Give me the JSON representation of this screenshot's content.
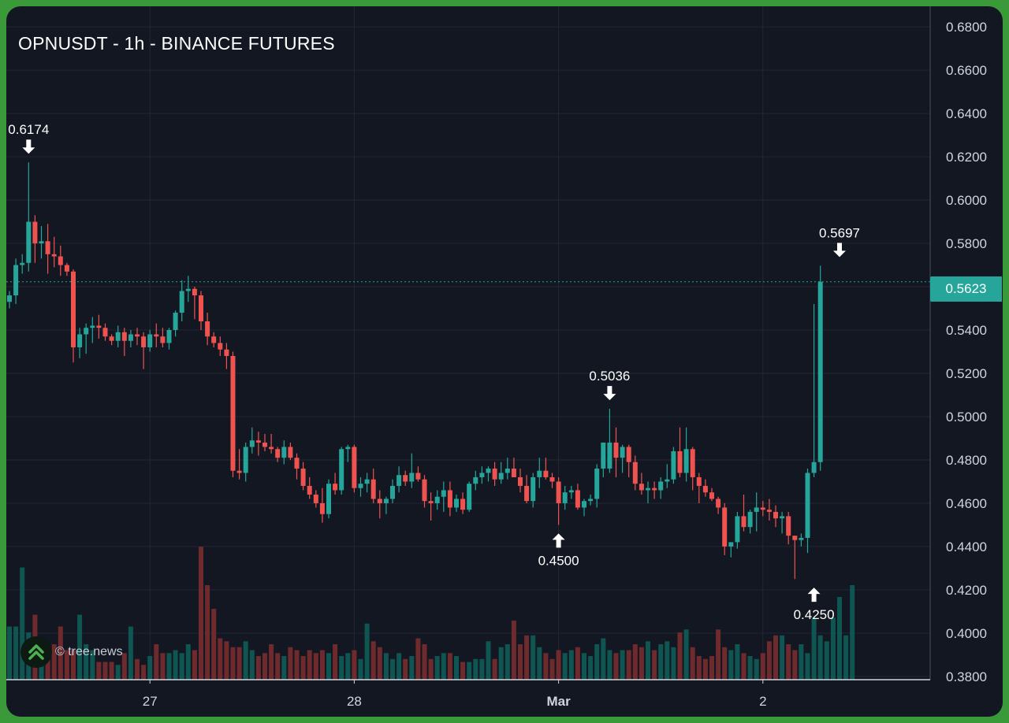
{
  "header": {
    "title": "OPNUSDT - 1h - BINANCE FUTURES"
  },
  "watermark": {
    "text": "© tree.news",
    "icon": "chevrons-up-icon"
  },
  "current_price": {
    "label": "0.5623",
    "value": 0.5623,
    "color": "#26a69a"
  },
  "colors": {
    "up": "#26a69a",
    "down": "#ef5350",
    "background": "#131722",
    "grid": "#232734"
  },
  "chart_data": {
    "type": "candlestick",
    "title": "OPNUSDT - 1h - BINANCE FUTURES",
    "y_axis": {
      "ticks": [
        "0.6800",
        "0.6600",
        "0.6400",
        "0.6200",
        "0.6000",
        "0.5800",
        "0.5600",
        "0.5400",
        "0.5200",
        "0.5000",
        "0.4800",
        "0.4600",
        "0.4400",
        "0.4200",
        "0.4000",
        "0.3800"
      ],
      "range": [
        0.3785,
        0.6895
      ],
      "position": "right"
    },
    "x_axis": {
      "ticks": [
        {
          "label": "27",
          "index": 22
        },
        {
          "label": "28",
          "index": 54
        },
        {
          "label": "Mar",
          "index": 86,
          "bold": true
        },
        {
          "label": "2",
          "index": 118
        }
      ]
    },
    "annotations": [
      {
        "label": "0.6174",
        "index": 3,
        "value": 0.6174,
        "side": "high"
      },
      {
        "label": "0.5036",
        "index": 94,
        "value": 0.5036,
        "side": "high"
      },
      {
        "label": "0.4500",
        "index": 86,
        "value": 0.45,
        "side": "low"
      },
      {
        "label": "0.5697",
        "index": 130,
        "value": 0.5697,
        "side": "high"
      },
      {
        "label": "0.4250",
        "index": 126,
        "value": 0.425,
        "side": "low"
      }
    ],
    "candles": [
      [
        0.553,
        0.558,
        0.55,
        0.556
      ],
      [
        0.556,
        0.573,
        0.552,
        0.57
      ],
      [
        0.57,
        0.575,
        0.566,
        0.571
      ],
      [
        0.571,
        0.6174,
        0.567,
        0.59
      ],
      [
        0.59,
        0.593,
        0.571,
        0.58
      ],
      [
        0.58,
        0.588,
        0.573,
        0.581
      ],
      [
        0.581,
        0.589,
        0.566,
        0.575
      ],
      [
        0.575,
        0.583,
        0.569,
        0.574
      ],
      [
        0.574,
        0.579,
        0.565,
        0.57
      ],
      [
        0.57,
        0.571,
        0.565,
        0.567
      ],
      [
        0.567,
        0.568,
        0.525,
        0.532
      ],
      [
        0.532,
        0.541,
        0.527,
        0.538
      ],
      [
        0.538,
        0.543,
        0.529,
        0.541
      ],
      [
        0.541,
        0.546,
        0.534,
        0.542
      ],
      [
        0.542,
        0.547,
        0.536,
        0.541
      ],
      [
        0.541,
        0.543,
        0.535,
        0.537
      ],
      [
        0.537,
        0.538,
        0.533,
        0.535
      ],
      [
        0.535,
        0.542,
        0.532,
        0.539
      ],
      [
        0.539,
        0.541,
        0.528,
        0.535
      ],
      [
        0.535,
        0.54,
        0.532,
        0.538
      ],
      [
        0.538,
        0.541,
        0.533,
        0.537
      ],
      [
        0.537,
        0.539,
        0.522,
        0.532
      ],
      [
        0.532,
        0.54,
        0.53,
        0.538
      ],
      [
        0.538,
        0.543,
        0.532,
        0.537
      ],
      [
        0.537,
        0.541,
        0.532,
        0.534
      ],
      [
        0.534,
        0.541,
        0.531,
        0.54
      ],
      [
        0.54,
        0.549,
        0.537,
        0.548
      ],
      [
        0.548,
        0.563,
        0.544,
        0.558
      ],
      [
        0.558,
        0.565,
        0.553,
        0.559
      ],
      [
        0.559,
        0.56,
        0.545,
        0.556
      ],
      [
        0.556,
        0.558,
        0.54,
        0.544
      ],
      [
        0.544,
        0.548,
        0.533,
        0.537
      ],
      [
        0.537,
        0.539,
        0.532,
        0.534
      ],
      [
        0.534,
        0.537,
        0.528,
        0.531
      ],
      [
        0.531,
        0.534,
        0.522,
        0.528
      ],
      [
        0.528,
        0.53,
        0.472,
        0.475
      ],
      [
        0.475,
        0.485,
        0.471,
        0.474
      ],
      [
        0.474,
        0.488,
        0.47,
        0.486
      ],
      [
        0.486,
        0.495,
        0.483,
        0.489
      ],
      [
        0.489,
        0.493,
        0.482,
        0.488
      ],
      [
        0.488,
        0.492,
        0.484,
        0.486
      ],
      [
        0.486,
        0.492,
        0.483,
        0.485
      ],
      [
        0.485,
        0.486,
        0.479,
        0.481
      ],
      [
        0.481,
        0.489,
        0.478,
        0.486
      ],
      [
        0.486,
        0.488,
        0.48,
        0.481
      ],
      [
        0.481,
        0.483,
        0.471,
        0.476
      ],
      [
        0.476,
        0.479,
        0.466,
        0.468
      ],
      [
        0.468,
        0.472,
        0.462,
        0.464
      ],
      [
        0.464,
        0.466,
        0.458,
        0.46
      ],
      [
        0.46,
        0.467,
        0.451,
        0.455
      ],
      [
        0.455,
        0.471,
        0.453,
        0.469
      ],
      [
        0.469,
        0.474,
        0.464,
        0.466
      ],
      [
        0.466,
        0.486,
        0.464,
        0.485
      ],
      [
        0.485,
        0.487,
        0.479,
        0.486
      ],
      [
        0.486,
        0.487,
        0.465,
        0.467
      ],
      [
        0.467,
        0.472,
        0.463,
        0.469
      ],
      [
        0.469,
        0.474,
        0.465,
        0.471
      ],
      [
        0.471,
        0.476,
        0.46,
        0.462
      ],
      [
        0.462,
        0.466,
        0.453,
        0.46
      ],
      [
        0.46,
        0.463,
        0.455,
        0.462
      ],
      [
        0.462,
        0.471,
        0.46,
        0.468
      ],
      [
        0.468,
        0.477,
        0.465,
        0.473
      ],
      [
        0.473,
        0.475,
        0.468,
        0.47
      ],
      [
        0.47,
        0.483,
        0.467,
        0.474
      ],
      [
        0.474,
        0.477,
        0.47,
        0.471
      ],
      [
        0.471,
        0.473,
        0.458,
        0.461
      ],
      [
        0.461,
        0.465,
        0.452,
        0.46
      ],
      [
        0.46,
        0.466,
        0.457,
        0.463
      ],
      [
        0.463,
        0.47,
        0.456,
        0.466
      ],
      [
        0.466,
        0.47,
        0.454,
        0.458
      ],
      [
        0.458,
        0.464,
        0.456,
        0.462
      ],
      [
        0.462,
        0.465,
        0.455,
        0.457
      ],
      [
        0.457,
        0.47,
        0.456,
        0.469
      ],
      [
        0.469,
        0.475,
        0.466,
        0.472
      ],
      [
        0.472,
        0.477,
        0.469,
        0.474
      ],
      [
        0.474,
        0.477,
        0.47,
        0.476
      ],
      [
        0.476,
        0.479,
        0.468,
        0.471
      ],
      [
        0.471,
        0.479,
        0.469,
        0.474
      ],
      [
        0.474,
        0.481,
        0.471,
        0.476
      ],
      [
        0.476,
        0.481,
        0.472,
        0.472
      ],
      [
        0.472,
        0.476,
        0.465,
        0.468
      ],
      [
        0.468,
        0.473,
        0.46,
        0.461
      ],
      [
        0.461,
        0.474,
        0.458,
        0.472
      ],
      [
        0.472,
        0.481,
        0.467,
        0.475
      ],
      [
        0.475,
        0.481,
        0.471,
        0.472
      ],
      [
        0.472,
        0.474,
        0.467,
        0.47
      ],
      [
        0.47,
        0.472,
        0.45,
        0.46
      ],
      [
        0.46,
        0.468,
        0.457,
        0.465
      ],
      [
        0.465,
        0.468,
        0.462,
        0.466
      ],
      [
        0.466,
        0.469,
        0.457,
        0.458
      ],
      [
        0.458,
        0.462,
        0.454,
        0.461
      ],
      [
        0.461,
        0.464,
        0.459,
        0.462
      ],
      [
        0.462,
        0.478,
        0.458,
        0.476
      ],
      [
        0.476,
        0.485,
        0.472,
        0.488
      ],
      [
        0.476,
        0.5036,
        0.474,
        0.488
      ],
      [
        0.488,
        0.495,
        0.472,
        0.481
      ],
      [
        0.481,
        0.487,
        0.474,
        0.486
      ],
      [
        0.486,
        0.487,
        0.472,
        0.479
      ],
      [
        0.479,
        0.482,
        0.466,
        0.469
      ],
      [
        0.469,
        0.474,
        0.464,
        0.466
      ],
      [
        0.466,
        0.47,
        0.46,
        0.467
      ],
      [
        0.467,
        0.47,
        0.462,
        0.466
      ],
      [
        0.466,
        0.472,
        0.462,
        0.47
      ],
      [
        0.47,
        0.478,
        0.467,
        0.471
      ],
      [
        0.471,
        0.486,
        0.469,
        0.484
      ],
      [
        0.484,
        0.495,
        0.472,
        0.474
      ],
      [
        0.474,
        0.495,
        0.47,
        0.485
      ],
      [
        0.485,
        0.486,
        0.466,
        0.472
      ],
      [
        0.472,
        0.474,
        0.46,
        0.468
      ],
      [
        0.468,
        0.471,
        0.463,
        0.465
      ],
      [
        0.465,
        0.467,
        0.461,
        0.462
      ],
      [
        0.462,
        0.463,
        0.455,
        0.458
      ],
      [
        0.458,
        0.46,
        0.436,
        0.44
      ],
      [
        0.44,
        0.442,
        0.435,
        0.442
      ],
      [
        0.442,
        0.456,
        0.439,
        0.454
      ],
      [
        0.454,
        0.464,
        0.447,
        0.449
      ],
      [
        0.449,
        0.457,
        0.446,
        0.456
      ],
      [
        0.456,
        0.465,
        0.447,
        0.458
      ],
      [
        0.458,
        0.461,
        0.454,
        0.457
      ],
      [
        0.457,
        0.462,
        0.452,
        0.456
      ],
      [
        0.456,
        0.459,
        0.449,
        0.453
      ],
      [
        0.453,
        0.456,
        0.446,
        0.454
      ],
      [
        0.454,
        0.456,
        0.441,
        0.445
      ],
      [
        0.445,
        0.445,
        0.425,
        0.443
      ],
      [
        0.443,
        0.446,
        0.44,
        0.444
      ],
      [
        0.444,
        0.476,
        0.437,
        0.474
      ],
      [
        0.474,
        0.552,
        0.472,
        0.479
      ],
      [
        0.479,
        0.5697,
        0.475,
        0.5623
      ]
    ],
    "volumes": [
      1.8,
      1.8,
      3.8,
      1.6,
      2.2,
      1.4,
      1.2,
      1.2,
      1.8,
      1.0,
      1.0,
      2.2,
      1.2,
      1.0,
      0.6,
      0.6,
      0.6,
      0.5,
      0.9,
      1.8,
      0.7,
      0.5,
      0.8,
      1.2,
      0.9,
      0.9,
      1.0,
      0.9,
      1.2,
      1.0,
      4.5,
      3.2,
      2.4,
      1.4,
      1.3,
      1.1,
      1.1,
      1.3,
      1.0,
      0.8,
      0.9,
      1.2,
      0.9,
      0.8,
      1.1,
      1.0,
      0.8,
      1.0,
      0.9,
      1.0,
      0.9,
      1.2,
      0.8,
      0.9,
      1.0,
      0.7,
      1.9,
      1.3,
      1.1,
      0.9,
      0.7,
      0.9,
      0.7,
      0.8,
      1.4,
      1.2,
      0.7,
      0.8,
      0.9,
      0.9,
      0.8,
      0.6,
      0.6,
      0.7,
      0.7,
      1.3,
      0.7,
      1.1,
      1.2,
      2.0,
      1.2,
      1.5,
      1.5,
      1.1,
      0.9,
      0.7,
      1.0,
      0.9,
      1.0,
      1.1,
      0.9,
      0.8,
      1.2,
      1.4,
      1.0,
      0.9,
      1.0,
      1.0,
      1.2,
      1.1,
      1.3,
      1.0,
      1.2,
      1.3,
      1.1,
      1.6,
      1.7,
      1.1,
      0.8,
      0.7,
      0.8,
      1.7,
      1.1,
      1.0,
      1.2,
      0.9,
      0.8,
      0.7,
      0.9,
      1.3,
      1.5,
      1.5,
      1.2,
      1.0,
      1.2,
      0.9,
      2.1,
      1.5,
      1.3,
      2.1,
      2.8,
      1.5,
      3.2
    ]
  }
}
